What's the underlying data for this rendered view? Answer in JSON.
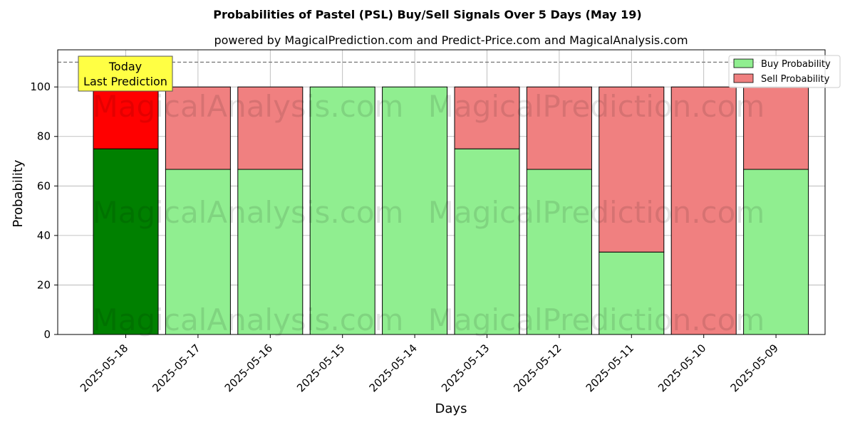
{
  "chart_data": {
    "type": "bar",
    "stacked": true,
    "title": "Probabilities of Pastel (PSL) Buy/Sell Signals Over 5 Days (May 19)",
    "subtitle": "powered by MagicalPrediction.com and Predict-Price.com and MagicalAnalysis.com",
    "xlabel": "Days",
    "ylabel": "Probability",
    "ylim": [
      0,
      115
    ],
    "yticks": [
      0,
      20,
      40,
      60,
      80,
      100
    ],
    "reference_line": 110,
    "grid": true,
    "legend_position": "top-right",
    "categories": [
      "2025-05-18",
      "2025-05-17",
      "2025-05-16",
      "2025-05-15",
      "2025-05-14",
      "2025-05-13",
      "2025-05-12",
      "2025-05-11",
      "2025-05-10",
      "2025-05-09"
    ],
    "series": [
      {
        "name": "Buy Probability",
        "values": [
          75,
          66.7,
          66.7,
          100,
          100,
          75,
          66.7,
          33.3,
          0,
          66.7
        ]
      },
      {
        "name": "Sell Probability",
        "values": [
          25,
          33.3,
          33.3,
          0,
          0,
          25,
          33.3,
          66.7,
          100,
          33.3
        ]
      }
    ],
    "colors": {
      "buy": "#90ee90",
      "sell": "#f08080",
      "buy_today": "#008000",
      "sell_today": "#ff0000",
      "annotation_bg": "#ffff44"
    },
    "annotation": {
      "line1": "Today",
      "line2": "Last Prediction"
    },
    "watermarks": [
      "MagicalAnalysis.com",
      "MagicalPrediction.com"
    ]
  }
}
